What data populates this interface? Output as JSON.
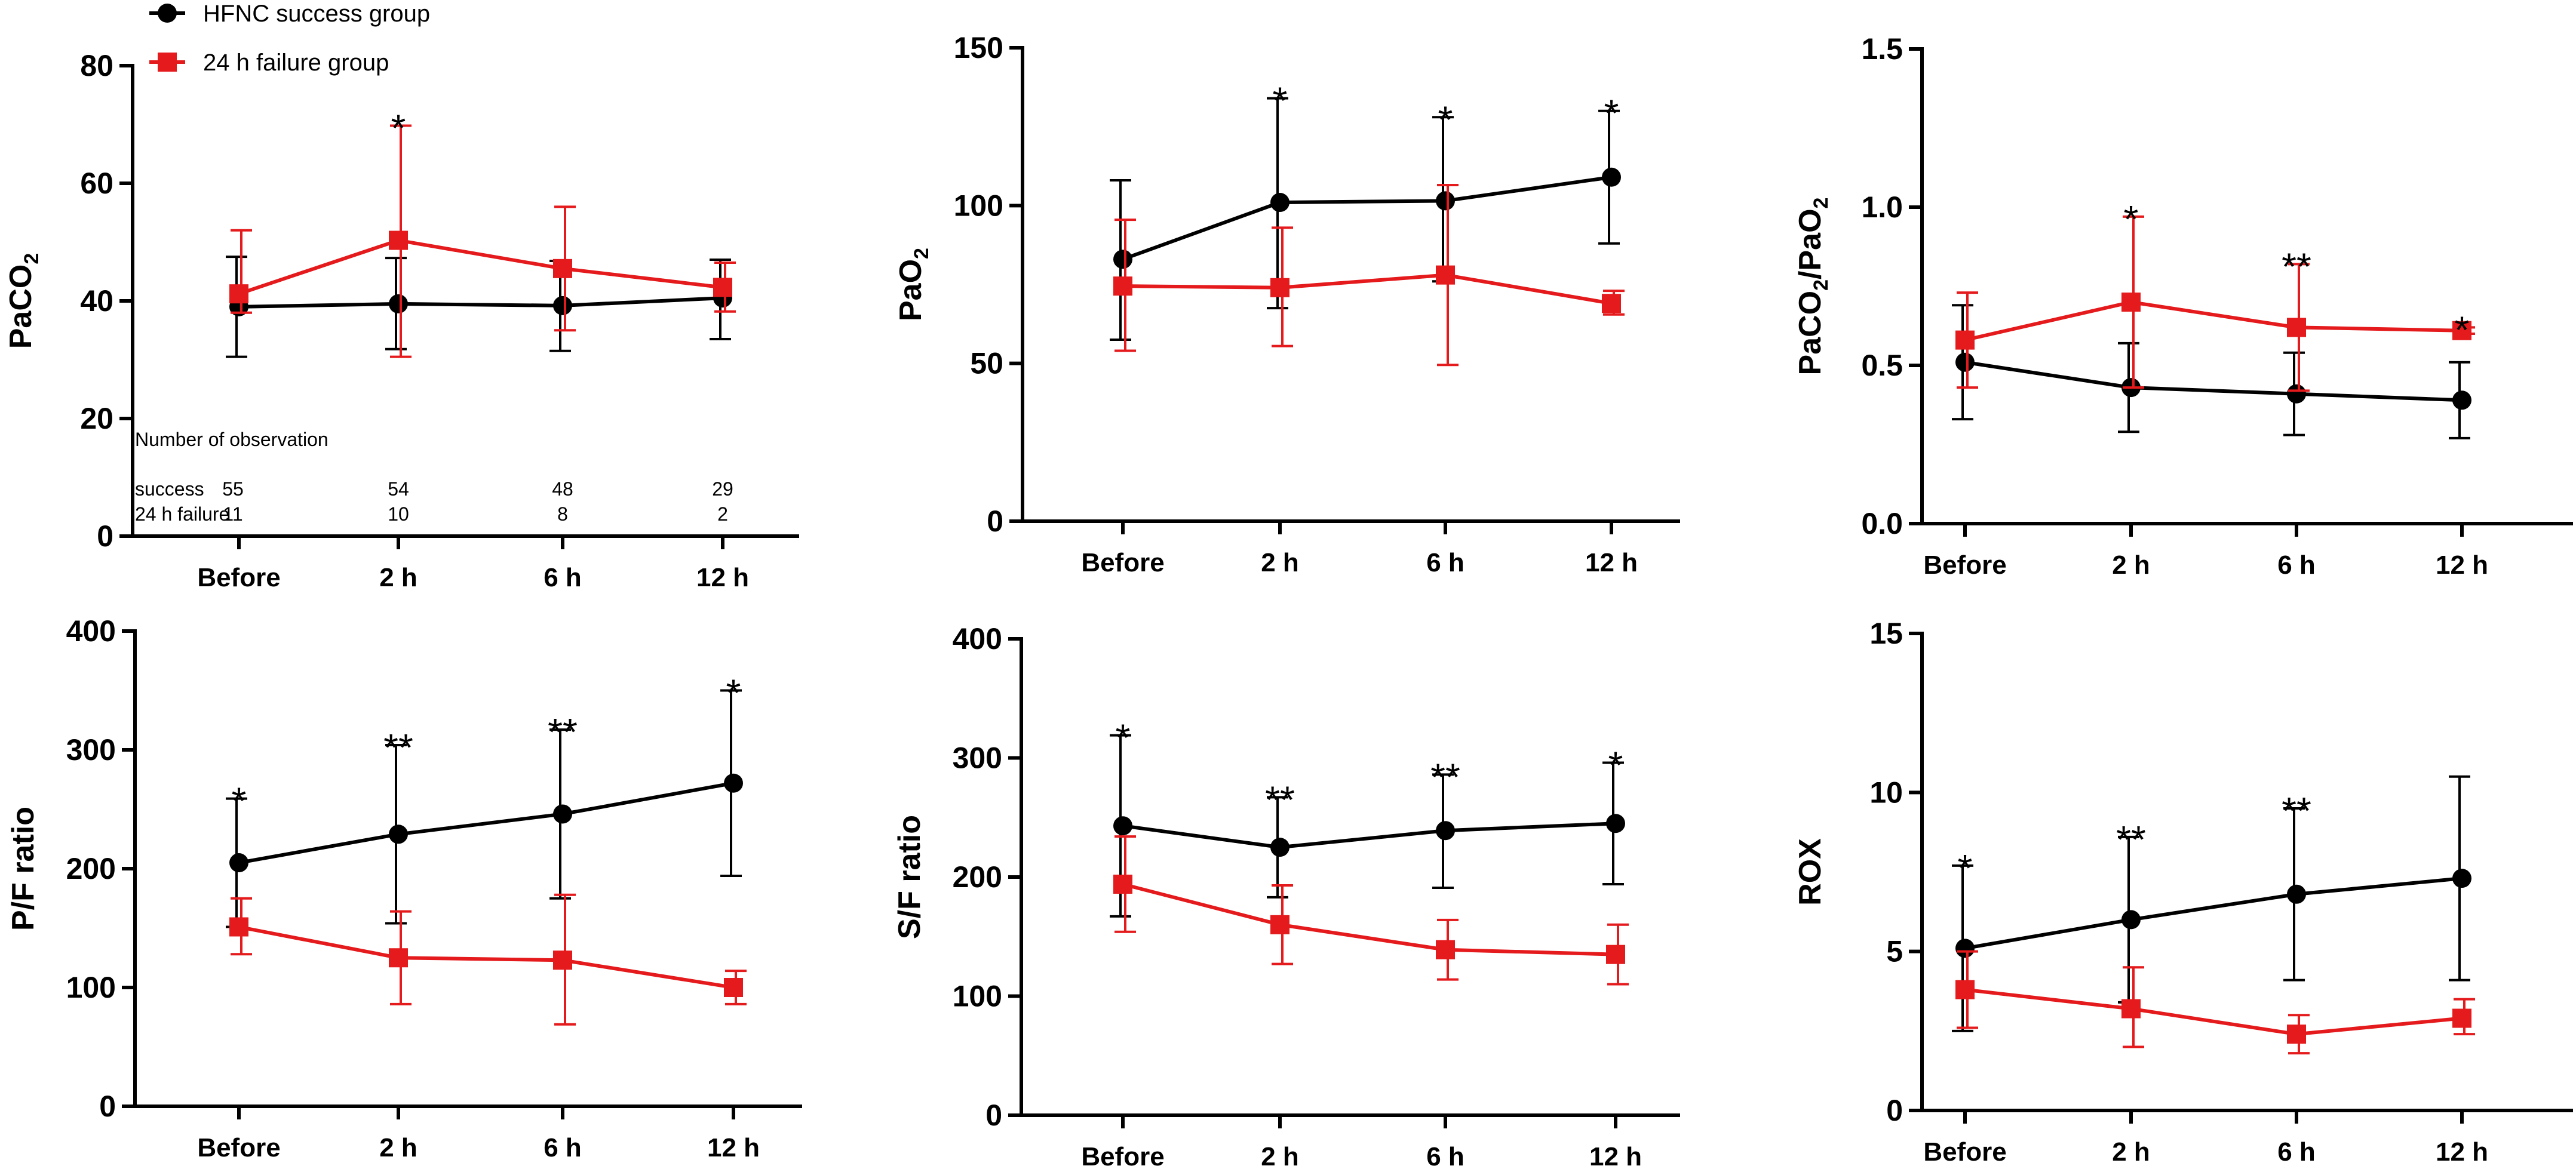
{
  "legend": {
    "success_label": "HFNC success group",
    "failure_label": "24 h failure group"
  },
  "colors": {
    "success": "#000000",
    "failure": "#e41a1c"
  },
  "observations": {
    "title": "Number of observation",
    "success_label": "success",
    "failure_label": "24 h failure",
    "success_counts": [
      "55",
      "54",
      "48",
      "29"
    ],
    "failure_counts": [
      "11",
      "10",
      "8",
      "2"
    ]
  },
  "chart_data": [
    {
      "type": "line",
      "ylabel_main": "PaCO",
      "ylabel_sub": "2",
      "ylabel_tail": "",
      "categories": [
        "Before",
        "2 h",
        "6 h",
        "12 h"
      ],
      "ylim": [
        0,
        80
      ],
      "yticks": [
        "0",
        "20",
        "40",
        "60",
        "80"
      ],
      "series": [
        {
          "name": "HFNC success group",
          "values": [
            39,
            39.5,
            39.2,
            40.5
          ],
          "err_hi": [
            47.5,
            47.3,
            46.8,
            47
          ],
          "err_lo": [
            30.5,
            31.8,
            31.5,
            33.5
          ]
        },
        {
          "name": "24 h failure group",
          "values": [
            41.2,
            50.3,
            45.5,
            42.3
          ],
          "err_hi": [
            52,
            69.8,
            56,
            46.5
          ],
          "err_lo": [
            38,
            30.5,
            35,
            38.2
          ]
        }
      ],
      "significance": [
        "",
        "*",
        "",
        ""
      ]
    },
    {
      "type": "line",
      "ylabel_main": "PaO",
      "ylabel_sub": "2",
      "ylabel_tail": "",
      "categories": [
        "Before",
        "2 h",
        "6 h",
        "12 h"
      ],
      "ylim": [
        0,
        150
      ],
      "yticks": [
        "0",
        "50",
        "100",
        "150"
      ],
      "series": [
        {
          "name": "HFNC success group",
          "values": [
            83,
            101,
            101.5,
            109
          ],
          "err_hi": [
            108,
            134,
            128,
            130
          ],
          "err_lo": [
            57.5,
            67.5,
            76,
            88
          ]
        },
        {
          "name": "24 h failure group",
          "values": [
            74.5,
            74,
            78,
            69
          ],
          "err_hi": [
            95.5,
            93,
            106.5,
            73
          ],
          "err_lo": [
            54,
            55.5,
            49.5,
            65.5
          ]
        }
      ],
      "significance": [
        "",
        "*",
        "*",
        "*"
      ]
    },
    {
      "type": "line",
      "ylabel_main": "PaCO",
      "ylabel_sub": "2",
      "ylabel_tail": "/PaO",
      "ylabel_sub2": "2",
      "categories": [
        "Before",
        "2 h",
        "6 h",
        "12 h"
      ],
      "ylim": [
        0,
        1.5
      ],
      "yticks": [
        "0.0",
        "0.5",
        "1.0",
        "1.5"
      ],
      "series": [
        {
          "name": "HFNC success group",
          "values": [
            0.51,
            0.43,
            0.41,
            0.39
          ],
          "err_hi": [
            0.69,
            0.57,
            0.54,
            0.51
          ],
          "err_lo": [
            0.33,
            0.29,
            0.28,
            0.27
          ]
        },
        {
          "name": "24 h failure group",
          "values": [
            0.58,
            0.7,
            0.62,
            0.61
          ],
          "err_hi": [
            0.73,
            0.97,
            0.82,
            0.62
          ],
          "err_lo": [
            0.43,
            0.43,
            0.42,
            0.6
          ]
        }
      ],
      "significance": [
        "",
        "*",
        "**",
        "*"
      ]
    },
    {
      "type": "line",
      "ylabel_main": "P/F ratio",
      "categories": [
        "Before",
        "2 h",
        "6 h",
        "12 h"
      ],
      "ylim": [
        0,
        400
      ],
      "yticks": [
        "0",
        "100",
        "200",
        "300",
        "400"
      ],
      "series": [
        {
          "name": "HFNC success group",
          "values": [
            205,
            229,
            246,
            272
          ],
          "err_hi": [
            259,
            304,
            317,
            350
          ],
          "err_lo": [
            151,
            154,
            175,
            194
          ]
        },
        {
          "name": "24 h failure group",
          "values": [
            151,
            125,
            123,
            100
          ],
          "err_hi": [
            175,
            164,
            178,
            114
          ],
          "err_lo": [
            128,
            86,
            69,
            86
          ]
        }
      ],
      "significance": [
        "*",
        "**",
        "**",
        "*"
      ]
    },
    {
      "type": "line",
      "ylabel_main": "S/F ratio",
      "categories": [
        "Before",
        "2 h",
        "6 h",
        "12 h"
      ],
      "ylim": [
        0,
        400
      ],
      "yticks": [
        "0",
        "100",
        "200",
        "300",
        "400"
      ],
      "series": [
        {
          "name": "HFNC success group",
          "values": [
            243,
            225,
            239,
            245
          ],
          "err_hi": [
            319,
            267,
            286,
            296
          ],
          "err_lo": [
            167,
            183,
            191,
            194
          ]
        },
        {
          "name": "24 h failure group",
          "values": [
            194,
            160,
            139,
            135
          ],
          "err_hi": [
            234,
            193,
            164,
            160
          ],
          "err_lo": [
            154,
            127,
            114,
            110
          ]
        }
      ],
      "significance": [
        "*",
        "**",
        "**",
        "*"
      ]
    },
    {
      "type": "line",
      "ylabel_main": "ROX",
      "categories": [
        "Before",
        "2 h",
        "6 h",
        "12 h"
      ],
      "ylim": [
        0,
        15
      ],
      "yticks": [
        "0",
        "5",
        "10",
        "15"
      ],
      "series": [
        {
          "name": "HFNC success group",
          "values": [
            5.1,
            6.0,
            6.8,
            7.3
          ],
          "err_hi": [
            7.7,
            8.6,
            9.5,
            10.5
          ],
          "err_lo": [
            2.5,
            3.4,
            4.1,
            4.1
          ]
        },
        {
          "name": "24 h failure group",
          "values": [
            3.8,
            3.2,
            2.4,
            2.9
          ],
          "err_hi": [
            5.0,
            4.5,
            3.0,
            3.5
          ],
          "err_lo": [
            2.6,
            2.0,
            1.8,
            2.4
          ]
        }
      ],
      "significance": [
        "*",
        "**",
        "**",
        ""
      ]
    }
  ]
}
